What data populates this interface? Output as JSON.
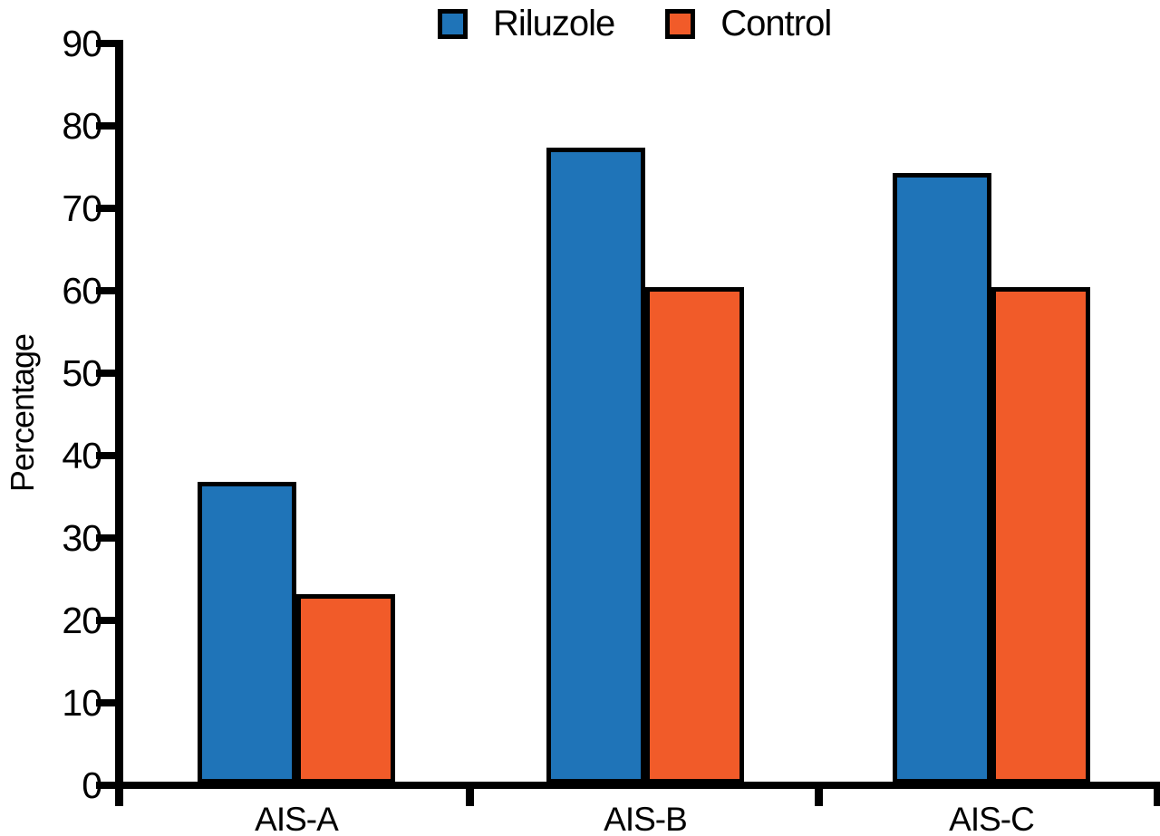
{
  "chart_data": {
    "type": "bar",
    "title": "",
    "categories": [
      "AIS-A",
      "AIS-B",
      "AIS-C"
    ],
    "series": [
      {
        "name": "Riluzole",
        "color": "#1F74B8",
        "values": [
          36.4,
          76.9,
          73.8
        ]
      },
      {
        "name": "Control",
        "color": "#F15B29",
        "values": [
          22.8,
          60,
          60
        ]
      }
    ],
    "xlabel": "",
    "ylabel": "Percentage",
    "ylim": [
      0,
      90
    ],
    "yticks": [
      0,
      10,
      20,
      30,
      40,
      50,
      60,
      70,
      80,
      90
    ],
    "legend_position": "top-center",
    "grid": false,
    "bar_edge_color": "#000000",
    "axis_color": "#000000",
    "background_color": "#FFFFFF"
  }
}
